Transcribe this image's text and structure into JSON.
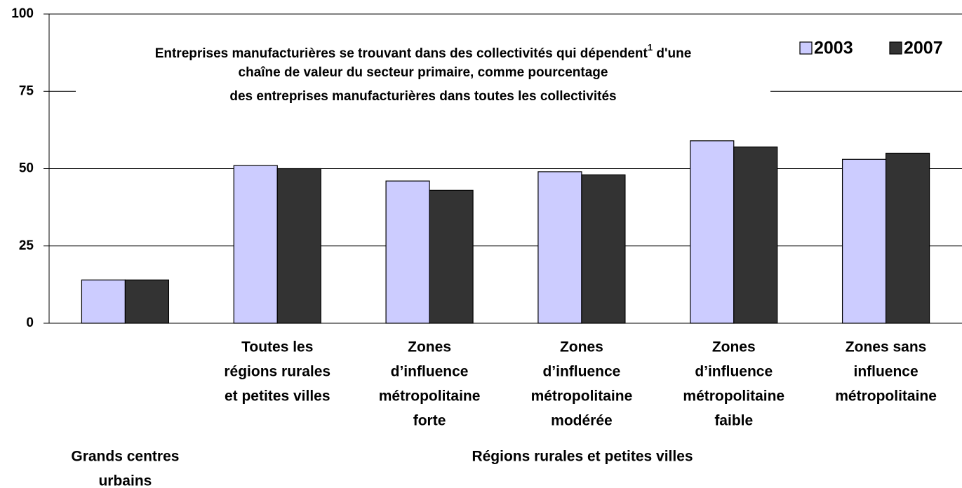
{
  "chart_data": {
    "type": "bar",
    "title": [
      [
        "Entreprises manufacturières se trouvant dans des collectivités qui dépendent",
        "1",
        " d'une"
      ],
      [
        "chaîne de valeur du secteur primaire, comme pourcentage"
      ],
      [
        "des entreprises manufacturières dans toutes les collectivités"
      ]
    ],
    "categories": [
      [
        "Grands centres",
        "urbains"
      ],
      [
        "Toutes les",
        "régions rurales",
        "et petites villes"
      ],
      [
        "Zones",
        "d’influence",
        "métropolitaine",
        "forte"
      ],
      [
        "Zones",
        "d’influence",
        "métropolitaine",
        "modérée"
      ],
      [
        "Zones",
        "d’influence",
        "métropolitaine",
        "faible"
      ],
      [
        "Zones sans",
        "influence",
        "métropolitaine"
      ]
    ],
    "group_label": "Régions rurales et petites villes",
    "series": [
      {
        "name": "2003",
        "color": "#ccccff",
        "values": [
          14,
          51,
          46,
          49,
          59,
          53
        ]
      },
      {
        "name": "2007",
        "color": "#333333",
        "values": [
          14,
          50,
          43,
          48,
          57,
          55
        ]
      }
    ],
    "ylim": [
      0,
      100
    ],
    "yticks": [
      0,
      25,
      50,
      75,
      100
    ],
    "grid": true,
    "legend": "top-right"
  }
}
